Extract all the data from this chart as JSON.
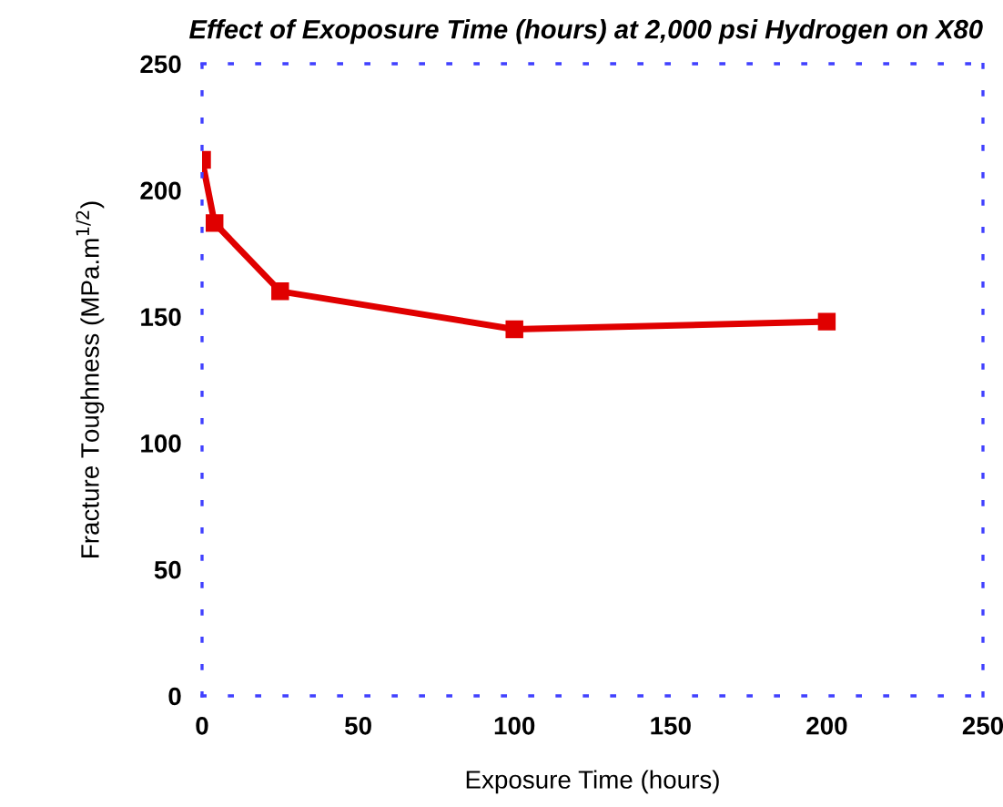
{
  "chart_data": {
    "type": "line",
    "title": "Effect of Exoposure Time (hours) at 2,000 psi Hydrogen on X80",
    "xlabel": "Exposure Time (hours)",
    "ylabel": "Fracture Toughness (MPa.m$^{1/2}$)",
    "x": [
      0,
      4,
      25,
      100,
      200
    ],
    "series": [
      {
        "color": "#e00000",
        "values": [
          212,
          187,
          160,
          145,
          148
        ]
      }
    ],
    "xlim": [
      0,
      250
    ],
    "xticks": [
      0,
      50,
      100,
      150,
      200,
      250
    ],
    "ylim": [
      0,
      250
    ],
    "yticks": [
      0,
      50,
      100,
      150,
      200,
      250
    ],
    "marker": "square",
    "line_style": "solid",
    "grid": false,
    "legend": false
  }
}
